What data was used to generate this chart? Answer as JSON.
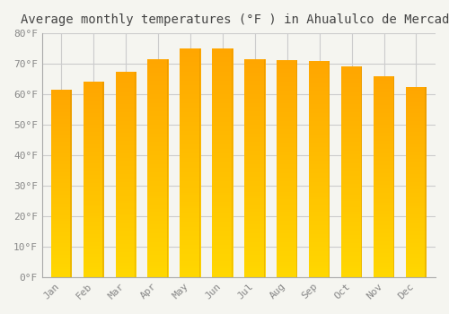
{
  "title": "Average monthly temperatures (°F ) in Ahualulco de Mercado",
  "months": [
    "Jan",
    "Feb",
    "Mar",
    "Apr",
    "May",
    "Jun",
    "Jul",
    "Aug",
    "Sep",
    "Oct",
    "Nov",
    "Dec"
  ],
  "values": [
    61.5,
    64.2,
    67.5,
    71.5,
    75.0,
    75.0,
    71.5,
    71.2,
    71.0,
    69.2,
    65.8,
    62.5
  ],
  "bar_color_bottom": "#FFD700",
  "bar_color_top": "#FFA500",
  "bar_edge_color": "#CC8800",
  "ylim": [
    0,
    80
  ],
  "yticks": [
    0,
    10,
    20,
    30,
    40,
    50,
    60,
    70,
    80
  ],
  "ytick_labels": [
    "0°F",
    "10°F",
    "20°F",
    "30°F",
    "40°F",
    "50°F",
    "60°F",
    "70°F",
    "80°F"
  ],
  "background_color": "#f5f5f0",
  "grid_color": "#cccccc",
  "title_fontsize": 10,
  "tick_fontsize": 8,
  "font_family": "monospace"
}
